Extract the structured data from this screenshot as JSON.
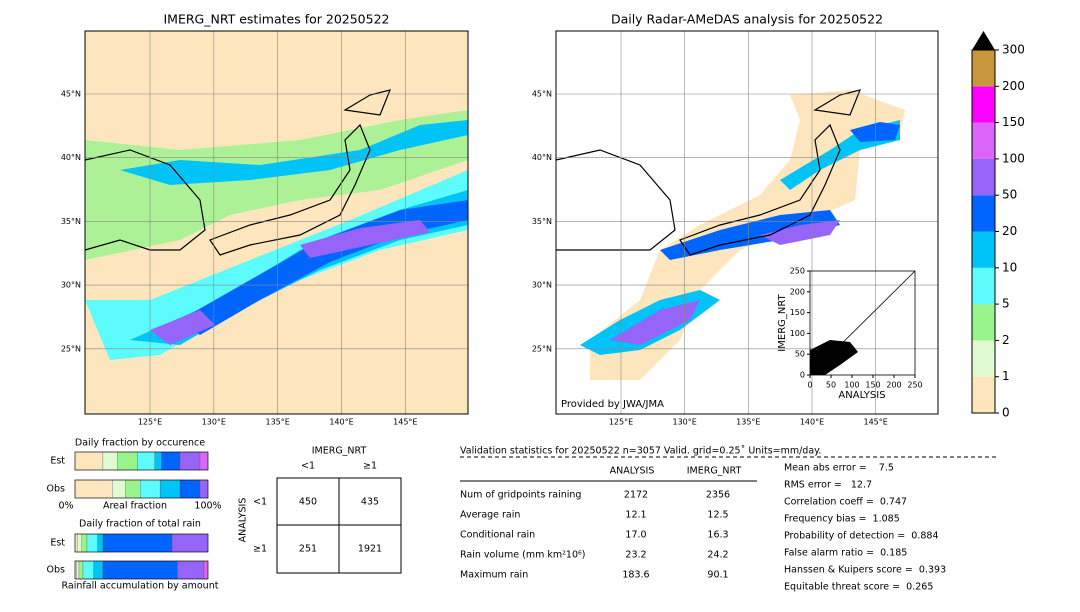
{
  "left_map": {
    "title": "IMERG_NRT estimates for 20250522",
    "lat_labels": [
      "45°N",
      "40°N",
      "35°N",
      "30°N",
      "25°N"
    ],
    "lon_labels": [
      "125°E",
      "130°E",
      "135°E",
      "140°E",
      "145°E"
    ]
  },
  "right_map": {
    "title": "Daily Radar-AMeDAS analysis for 20250522",
    "lat_labels": [
      "45°N",
      "40°N",
      "35°N",
      "30°N",
      "25°N"
    ],
    "lon_labels": [
      "125°E",
      "130°E",
      "135°E",
      "140°E",
      "145°E"
    ],
    "credit": "Provided by JWA/JMA"
  },
  "scatter": {
    "xlabel": "ANALYSIS",
    "ylabel": "IMERG_NRT",
    "lim": [
      0,
      250
    ],
    "ticks": [
      0,
      50,
      100,
      150,
      200,
      250
    ]
  },
  "colorbar": {
    "ticks": [
      0,
      1,
      2,
      5,
      10,
      20,
      50,
      100,
      150,
      200,
      300
    ],
    "colors": [
      "#fde6be",
      "#e0fad2",
      "#98f48c",
      "#5cfcfc",
      "#00c4f8",
      "#0064ff",
      "#9664f8",
      "#dc64f8",
      "#ff00ff",
      "#c8963c"
    ]
  },
  "fraction_occurrence": {
    "title": "Daily fraction by occurence",
    "rows": [
      "Est",
      "Obs"
    ],
    "est": [
      21,
      11,
      15,
      13,
      5,
      14,
      15,
      6
    ],
    "obs": [
      28,
      10,
      11,
      15,
      15,
      15,
      6,
      0
    ],
    "axis_left": "0%",
    "axis_label": "Areal fraction",
    "axis_right": "100%"
  },
  "fraction_total": {
    "title": "Daily fraction of total rain",
    "rows": [
      "Est",
      "Obs"
    ],
    "est": [
      2,
      3,
      4,
      8,
      4,
      52,
      27,
      0
    ],
    "obs": [
      1,
      2,
      3,
      8,
      7,
      56,
      20,
      3
    ],
    "footer": "Rainfall accumulation by amount"
  },
  "contingency": {
    "col_title": "IMERG_NRT",
    "cols": [
      "<1",
      "≥1"
    ],
    "row_title": "ANALYSIS",
    "rows": [
      "<1",
      "≥1"
    ],
    "cells": [
      [
        450,
        435
      ],
      [
        251,
        1921
      ]
    ]
  },
  "stats": {
    "header": "Validation statistics for 20250522  n=3057 Valid. grid=0.25˚ Units=mm/day.",
    "columns": [
      "ANALYSIS",
      "IMERG_NRT"
    ],
    "rows": [
      {
        "label": "Num of gridpoints raining",
        "values": [
          "2172",
          "2356"
        ]
      },
      {
        "label": "Average rain",
        "values": [
          "12.1",
          "12.5"
        ]
      },
      {
        "label": "Conditional rain",
        "values": [
          "17.0",
          "16.3"
        ]
      },
      {
        "label": "Rain volume (mm km²10⁶)",
        "values": [
          "23.2",
          "24.2"
        ]
      },
      {
        "label": "Maximum rain",
        "values": [
          "183.6",
          "90.1"
        ]
      }
    ],
    "scores": [
      "Mean abs error =    7.5",
      "RMS error =   12.7",
      "Correlation coeff =  0.747",
      "Frequency bias =  1.085",
      "Probability of detection =  0.884",
      "False alarm ratio =  0.185",
      "Hanssen & Kuipers score =  0.393",
      "Equitable threat score =  0.265"
    ]
  }
}
